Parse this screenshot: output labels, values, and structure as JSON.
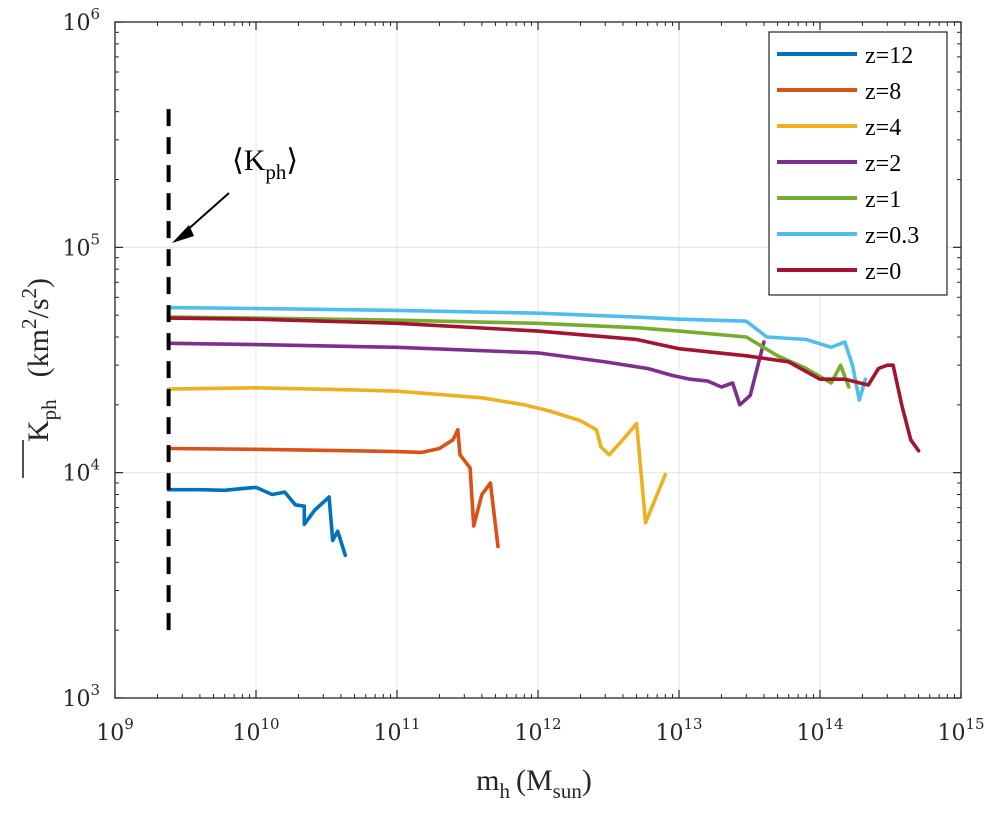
{
  "chart_data": {
    "type": "line",
    "x_scale": "log",
    "y_scale": "log",
    "xlim": [
      1000000000.0,
      1000000000000000.0
    ],
    "ylim": [
      1000,
      1000000
    ],
    "grid": true,
    "legend_position": "top-right",
    "x_ticks": [
      {
        "base": "10",
        "exp": "9"
      },
      {
        "base": "10",
        "exp": "10"
      },
      {
        "base": "10",
        "exp": "11"
      },
      {
        "base": "10",
        "exp": "12"
      },
      {
        "base": "10",
        "exp": "13"
      },
      {
        "base": "10",
        "exp": "14"
      },
      {
        "base": "10",
        "exp": "15"
      }
    ],
    "y_ticks": [
      {
        "base": "10",
        "exp": "3"
      },
      {
        "base": "10",
        "exp": "4"
      },
      {
        "base": "10",
        "exp": "5"
      },
      {
        "base": "10",
        "exp": "6"
      }
    ],
    "xlabel": {
      "main": "m",
      "sub": "h",
      "paren_main": "(M",
      "paren_sub": "sun",
      "close": ")"
    },
    "ylabel": {
      "main": "K",
      "sub": "ph",
      "unit_open": "(km",
      "sup1": "2",
      "slash": "/s",
      "sup2": "2",
      "close": ")"
    },
    "annotation": {
      "open": "⟨K",
      "sub": "ph",
      "close": "⟩",
      "x": 2400000000.0,
      "y_min": 2000,
      "y_max": 450000
    },
    "series": [
      {
        "name": "z=12",
        "color": "#0072BD",
        "points": [
          [
            2400000000.0,
            8400
          ],
          [
            4000000000.0,
            8400
          ],
          [
            6000000000.0,
            8350
          ],
          [
            8000000000.0,
            8500
          ],
          [
            10000000000.0,
            8600
          ],
          [
            13000000000.0,
            8000
          ],
          [
            16000000000.0,
            8200
          ],
          [
            19000000000.0,
            7200
          ],
          [
            22000000000.0,
            7100
          ],
          [
            22000000000.0,
            5900
          ],
          [
            26000000000.0,
            6800
          ],
          [
            33000000000.0,
            7800
          ],
          [
            35000000000.0,
            5000
          ],
          [
            38000000000.0,
            5500
          ],
          [
            43000000000.0,
            4300
          ]
        ]
      },
      {
        "name": "z=8",
        "color": "#D95319",
        "points": [
          [
            2400000000.0,
            12800
          ],
          [
            10000000000.0,
            12700
          ],
          [
            50000000000.0,
            12500
          ],
          [
            100000000000.0,
            12400
          ],
          [
            150000000000.0,
            12300
          ],
          [
            200000000000.0,
            12800
          ],
          [
            250000000000.0,
            14000
          ],
          [
            270000000000.0,
            15500
          ],
          [
            280000000000.0,
            12000
          ],
          [
            330000000000.0,
            10500
          ],
          [
            350000000000.0,
            5800
          ],
          [
            400000000000.0,
            8000
          ],
          [
            460000000000.0,
            9000
          ],
          [
            520000000000.0,
            4700
          ]
        ]
      },
      {
        "name": "z=4",
        "color": "#EDB120",
        "points": [
          [
            2400000000.0,
            23500
          ],
          [
            10000000000.0,
            23800
          ],
          [
            50000000000.0,
            23300
          ],
          [
            100000000000.0,
            23000
          ],
          [
            400000000000.0,
            21500
          ],
          [
            800000000000.0,
            20000
          ],
          [
            1200000000000.0,
            18800
          ],
          [
            2000000000000.0,
            17000
          ],
          [
            2600000000000.0,
            15500
          ],
          [
            2800000000000.0,
            13000
          ],
          [
            3200000000000.0,
            12000
          ],
          [
            4000000000000.0,
            14000
          ],
          [
            5000000000000.0,
            16500
          ],
          [
            5800000000000.0,
            6000
          ],
          [
            8000000000000.0,
            9800
          ]
        ]
      },
      {
        "name": "z=2",
        "color": "#7E2F8E",
        "points": [
          [
            2400000000.0,
            37500
          ],
          [
            10000000000.0,
            37000
          ],
          [
            100000000000.0,
            36000
          ],
          [
            1000000000000.0,
            34000
          ],
          [
            3000000000000.0,
            31000
          ],
          [
            6000000000000.0,
            29000
          ],
          [
            9000000000000.0,
            27000
          ],
          [
            12000000000000.0,
            26000
          ],
          [
            16000000000000.0,
            25500
          ],
          [
            20000000000000.0,
            24000
          ],
          [
            24000000000000.0,
            25000
          ],
          [
            27000000000000.0,
            20000
          ],
          [
            32000000000000.0,
            22000
          ],
          [
            40000000000000.0,
            38000
          ]
        ]
      },
      {
        "name": "z=1",
        "color": "#77AC30",
        "points": [
          [
            2400000000.0,
            49000
          ],
          [
            10000000000.0,
            48500
          ],
          [
            100000000000.0,
            47500
          ],
          [
            1000000000000.0,
            46000
          ],
          [
            5000000000000.0,
            44000
          ],
          [
            10000000000000.0,
            42500
          ],
          [
            30000000000000.0,
            40000
          ],
          [
            50000000000000.0,
            33000
          ],
          [
            80000000000000.0,
            29000
          ],
          [
            120000000000000.0,
            25000
          ],
          [
            140000000000000.0,
            30000
          ],
          [
            160000000000000.0,
            24000
          ]
        ]
      },
      {
        "name": "z=0.3",
        "color": "#4DBEEE",
        "points": [
          [
            2400000000.0,
            54000
          ],
          [
            10000000000.0,
            53500
          ],
          [
            100000000000.0,
            52500
          ],
          [
            1000000000000.0,
            51000
          ],
          [
            5000000000000.0,
            49000
          ],
          [
            10000000000000.0,
            48000
          ],
          [
            30000000000000.0,
            47000
          ],
          [
            42000000000000.0,
            40000
          ],
          [
            80000000000000.0,
            39000
          ],
          [
            120000000000000.0,
            36000
          ],
          [
            150000000000000.0,
            38000
          ],
          [
            170000000000000.0,
            30000
          ],
          [
            190000000000000.0,
            21000
          ],
          [
            210000000000000.0,
            26000
          ]
        ]
      },
      {
        "name": "z=0",
        "color": "#A2142F",
        "points": [
          [
            2400000000.0,
            48500
          ],
          [
            10000000000.0,
            48000
          ],
          [
            100000000000.0,
            46000
          ],
          [
            1000000000000.0,
            42500
          ],
          [
            5000000000000.0,
            39000
          ],
          [
            10000000000000.0,
            35500
          ],
          [
            30000000000000.0,
            33000
          ],
          [
            60000000000000.0,
            31000
          ],
          [
            100000000000000.0,
            26000
          ],
          [
            150000000000000.0,
            26000
          ],
          [
            220000000000000.0,
            24500
          ],
          [
            260000000000000.0,
            29000
          ],
          [
            300000000000000.0,
            30000
          ],
          [
            330000000000000.0,
            30000
          ],
          [
            380000000000000.0,
            20000
          ],
          [
            440000000000000.0,
            14000
          ],
          [
            500000000000000.0,
            12500
          ]
        ]
      }
    ]
  }
}
